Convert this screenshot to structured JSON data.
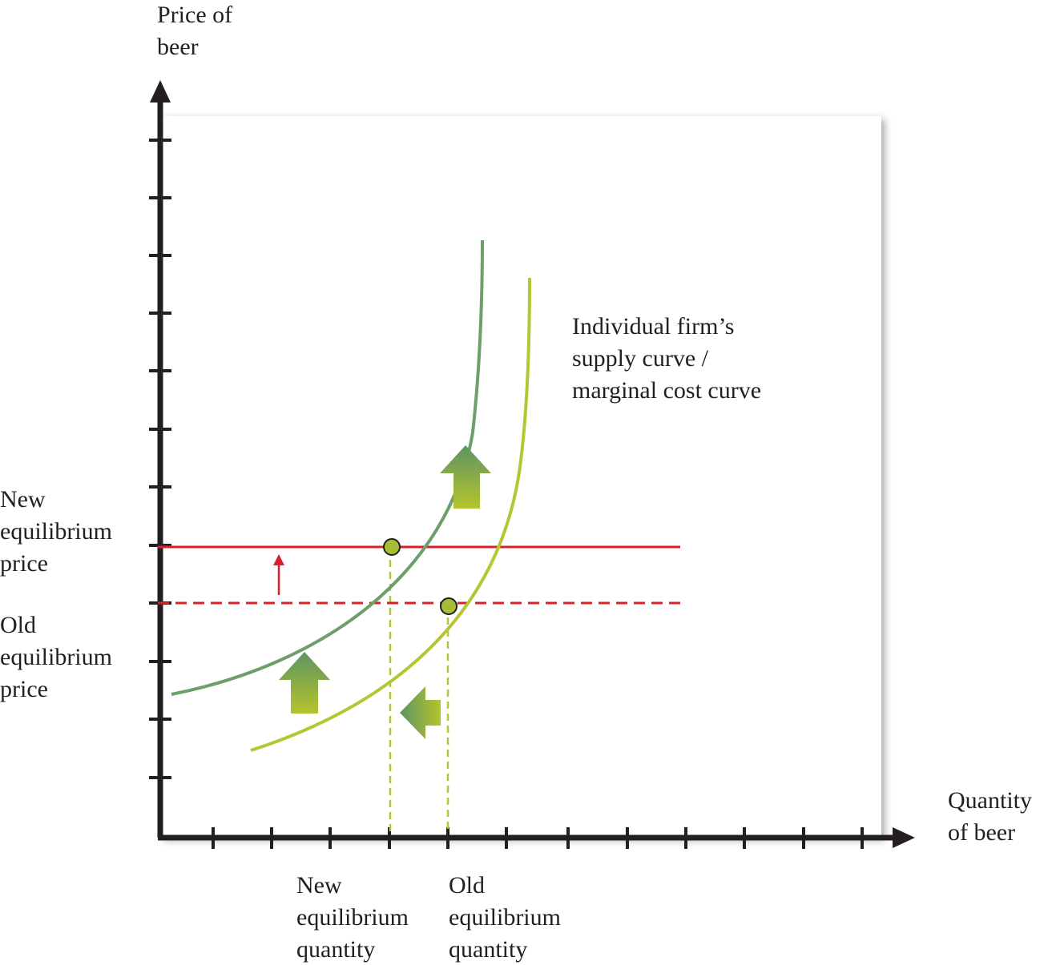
{
  "axes": {
    "y_label": [
      "Price of",
      "beer"
    ],
    "x_label": [
      "Quantity",
      "of beer"
    ]
  },
  "curves": {
    "label": [
      "Individual firm’s",
      "supply curve /",
      "marginal cost curve"
    ]
  },
  "price_labels": {
    "new": [
      "New",
      "equilibrium",
      "price"
    ],
    "old": [
      "Old",
      "equilibrium",
      "price"
    ]
  },
  "quantity_labels": {
    "new": [
      "New",
      "equilibrium",
      "quantity"
    ],
    "old": [
      "Old",
      "equilibrium",
      "quantity"
    ]
  },
  "colors": {
    "axis": "#231f20",
    "new_curve": "#6d9f6a",
    "old_curve": "#b5c632",
    "price_line": "#d7202a",
    "point_fill": "#a9bd34",
    "arrow_top": "#5f9463",
    "arrow_bottom": "#b3c42c"
  }
}
